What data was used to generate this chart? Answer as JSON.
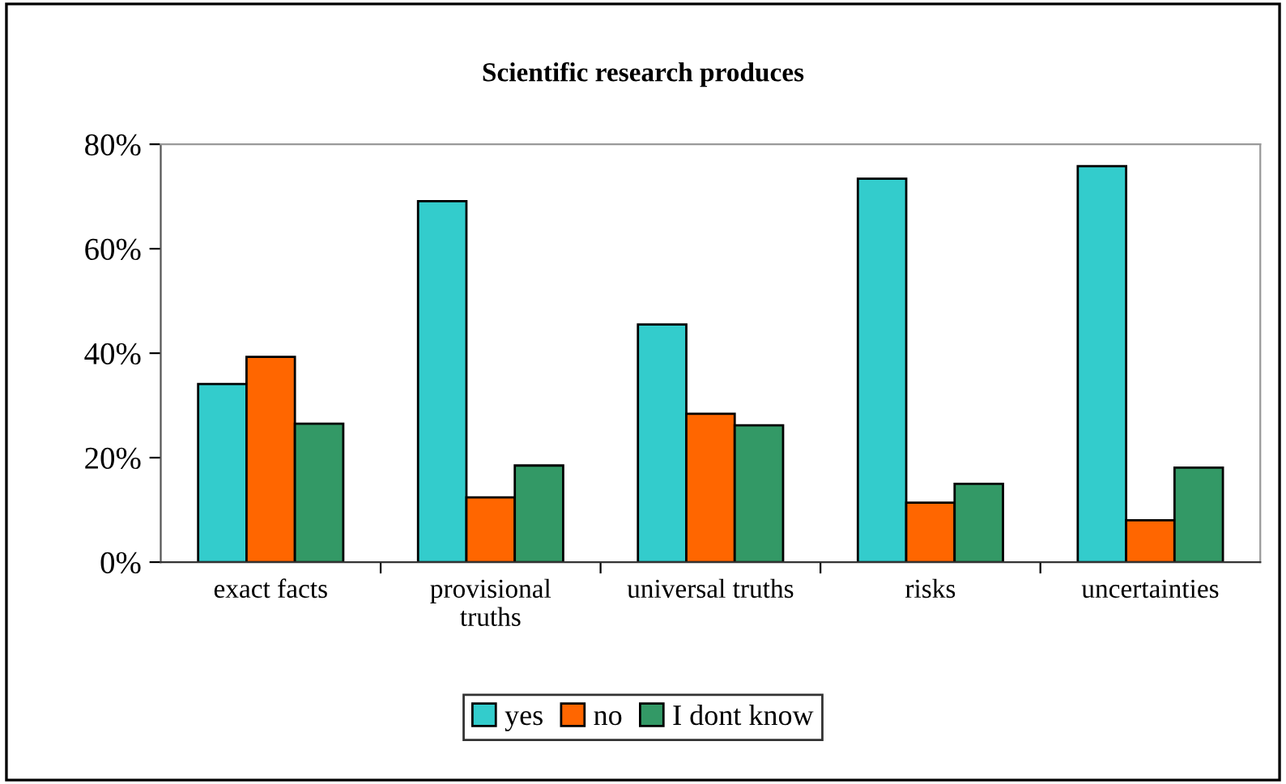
{
  "chart_data": {
    "type": "bar",
    "title": "Scientific research produces",
    "categories": [
      "exact facts",
      "provisional\ntruths",
      "universal truths",
      "risks",
      "uncertainties"
    ],
    "series": [
      {
        "name": "yes",
        "color": "#33cccc",
        "values": [
          34.1,
          69.1,
          45.5,
          73.4,
          75.8
        ]
      },
      {
        "name": "no",
        "color": "#ff6600",
        "values": [
          39.3,
          12.4,
          28.4,
          11.4,
          8.0
        ]
      },
      {
        "name": "I dont know",
        "color": "#339966",
        "values": [
          26.5,
          18.5,
          26.2,
          15.0,
          18.1
        ]
      }
    ],
    "ylim": [
      0,
      80
    ],
    "yticks": [
      {
        "value": 0,
        "label": "0%"
      },
      {
        "value": 20,
        "label": "20%"
      },
      {
        "value": 40,
        "label": "40%"
      },
      {
        "value": 60,
        "label": "60%"
      },
      {
        "value": 80,
        "label": "80%"
      }
    ],
    "grid": false,
    "legend": "bottom"
  }
}
